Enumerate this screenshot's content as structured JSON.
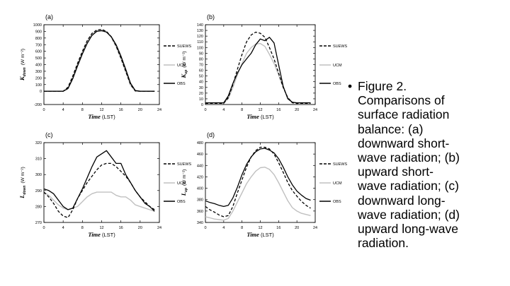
{
  "caption": {
    "bullet": "•",
    "text": "Figure 2.\nComparisons of\nsurface radiation\nbalance: (a)\ndownward short-\nwave radiation; (b)\nupward short-\nwave radiation; (c)\ndownward long-\nwave radiation; (d)\nupward long-wave\nradiation."
  },
  "colors": {
    "SUEWS": "#000000",
    "UCM": "#c0c0c0",
    "OBS": "#000000"
  },
  "chart_data": [
    {
      "panel": "(a)",
      "type": "line",
      "ylabel_main": "K",
      "ylabel_sub": "down",
      "ylabel_unit": "(W m⁻²)",
      "xlabel_main": "Time",
      "xlabel_unit": "(LST)",
      "xlim": [
        0,
        24
      ],
      "ylim": [
        -200,
        1000
      ],
      "xticks": [
        0,
        4,
        8,
        12,
        16,
        20,
        24
      ],
      "yticks": [
        -200,
        0,
        100,
        200,
        300,
        400,
        500,
        600,
        700,
        800,
        900,
        1000
      ],
      "series": [
        {
          "name": "SUEWS",
          "style": "dashed",
          "x": [
            0,
            1,
            2,
            3,
            4,
            5,
            6,
            7,
            8,
            9,
            10,
            11,
            12,
            13,
            14,
            15,
            16,
            17,
            18,
            19,
            20,
            21,
            22,
            23
          ],
          "y": [
            0,
            0,
            0,
            0,
            0,
            60,
            230,
            420,
            600,
            760,
            870,
            920,
            930,
            900,
            820,
            680,
            500,
            300,
            100,
            5,
            0,
            0,
            0,
            0
          ]
        },
        {
          "name": "UCM",
          "style": "solid",
          "x": [
            0,
            1,
            2,
            3,
            4,
            5,
            6,
            7,
            8,
            9,
            10,
            11,
            12,
            13,
            14,
            15,
            16,
            17,
            18,
            19,
            20,
            21,
            22,
            23
          ],
          "y": [
            0,
            0,
            0,
            0,
            0,
            50,
            220,
            410,
            590,
            750,
            860,
            910,
            920,
            890,
            810,
            670,
            490,
            290,
            90,
            0,
            0,
            0,
            0,
            0
          ]
        },
        {
          "name": "OBS",
          "style": "solid",
          "x": [
            0,
            1,
            2,
            3,
            4,
            5,
            6,
            7,
            8,
            9,
            10,
            11,
            12,
            13,
            14,
            15,
            16,
            17,
            18,
            19,
            20,
            21,
            22,
            23
          ],
          "y": [
            0,
            0,
            0,
            0,
            0,
            40,
            190,
            380,
            560,
            720,
            840,
            900,
            910,
            890,
            820,
            700,
            530,
            330,
            120,
            10,
            0,
            0,
            0,
            0
          ]
        }
      ]
    },
    {
      "panel": "(b)",
      "type": "line",
      "ylabel_main": "K",
      "ylabel_sub": "up",
      "ylabel_unit": "(W m⁻²)",
      "xlabel_main": "Time",
      "xlabel_unit": "(LST)",
      "xlim": [
        0,
        24
      ],
      "ylim": [
        0,
        140
      ],
      "xticks": [
        0,
        4,
        8,
        12,
        16,
        20,
        24
      ],
      "yticks": [
        0,
        10,
        20,
        30,
        40,
        50,
        60,
        70,
        80,
        90,
        100,
        110,
        120,
        130,
        140
      ],
      "series": [
        {
          "name": "SUEWS",
          "style": "dashed",
          "x": [
            0,
            1,
            2,
            3,
            4,
            5,
            6,
            7,
            8,
            9,
            10,
            11,
            12,
            13,
            14,
            15,
            16,
            17,
            18,
            19,
            20,
            21,
            22,
            23
          ],
          "y": [
            2,
            2,
            2,
            2,
            2,
            12,
            35,
            62,
            88,
            110,
            122,
            127,
            125,
            118,
            100,
            80,
            55,
            30,
            12,
            3,
            2,
            2,
            2,
            2
          ]
        },
        {
          "name": "UCM",
          "style": "solid",
          "x": [
            0,
            1,
            2,
            3,
            4,
            5,
            6,
            7,
            8,
            9,
            10,
            11,
            12,
            13,
            14,
            15,
            16,
            17,
            18,
            19,
            20,
            21,
            22,
            23
          ],
          "y": [
            3,
            3,
            3,
            3,
            3,
            10,
            30,
            52,
            72,
            90,
            100,
            106,
            107,
            102,
            88,
            72,
            52,
            30,
            12,
            4,
            3,
            3,
            3,
            3
          ]
        },
        {
          "name": "OBS",
          "style": "solid",
          "x": [
            0,
            1,
            2,
            3,
            4,
            5,
            6,
            7,
            8,
            9,
            10,
            11,
            12,
            13,
            14,
            15,
            16,
            17,
            18,
            19,
            20,
            21,
            22,
            23
          ],
          "y": [
            3,
            3,
            3,
            3,
            3,
            15,
            37,
            55,
            70,
            80,
            90,
            105,
            115,
            112,
            118,
            108,
            70,
            32,
            10,
            4,
            3,
            3,
            3,
            3
          ]
        }
      ]
    },
    {
      "panel": "(c)",
      "type": "line",
      "ylabel_main": "L",
      "ylabel_sub": "down",
      "ylabel_unit": "(W m⁻²)",
      "xlabel_main": "Time",
      "xlabel_unit": "(LST)",
      "xlim": [
        0,
        24
      ],
      "ylim": [
        270,
        320
      ],
      "xticks": [
        0,
        4,
        8,
        12,
        16,
        20,
        24
      ],
      "yticks": [
        270,
        280,
        290,
        300,
        310,
        320
      ],
      "series": [
        {
          "name": "SUEWS",
          "style": "dashed",
          "x": [
            0,
            1,
            2,
            3,
            4,
            5,
            6,
            7,
            8,
            9,
            10,
            11,
            12,
            13,
            14,
            15,
            16,
            17,
            18,
            19,
            20,
            21,
            22,
            23
          ],
          "y": [
            289,
            286,
            282,
            277,
            274,
            273,
            278,
            285,
            290,
            295,
            299,
            303,
            306,
            307,
            307,
            305,
            302,
            299,
            295,
            290,
            286,
            283,
            280,
            278
          ]
        },
        {
          "name": "UCM",
          "style": "solid",
          "x": [
            0,
            1,
            2,
            3,
            4,
            5,
            6,
            7,
            8,
            9,
            10,
            11,
            12,
            13,
            14,
            15,
            16,
            17,
            18,
            19,
            20,
            21,
            22,
            23
          ],
          "y": [
            289,
            287,
            284,
            281,
            279,
            278,
            279,
            280,
            283,
            286,
            288,
            289,
            289,
            289,
            289,
            287,
            286,
            286,
            284,
            281,
            280,
            279,
            278,
            277
          ]
        },
        {
          "name": "OBS",
          "style": "solid",
          "x": [
            0,
            1,
            2,
            3,
            4,
            5,
            6,
            7,
            8,
            9,
            10,
            11,
            12,
            13,
            14,
            15,
            16,
            17,
            18,
            19,
            20,
            21,
            22,
            23
          ],
          "y": [
            291,
            290,
            288,
            284,
            280,
            278,
            279,
            285,
            291,
            298,
            305,
            311,
            313,
            315,
            311,
            307,
            307,
            300,
            295,
            290,
            286,
            282,
            280,
            277
          ]
        }
      ]
    },
    {
      "panel": "(d)",
      "type": "line",
      "ylabel_main": "L",
      "ylabel_sub": "up",
      "ylabel_unit": "(W m⁻²)",
      "xlabel_main": "Time",
      "xlabel_unit": "(LST)",
      "xlim": [
        0,
        24
      ],
      "ylim": [
        340,
        480
      ],
      "xticks": [
        0,
        4,
        8,
        12,
        16,
        20,
        24
      ],
      "yticks": [
        340,
        360,
        380,
        400,
        420,
        440,
        460,
        480
      ],
      "series": [
        {
          "name": "SUEWS",
          "style": "dashed",
          "x": [
            0,
            1,
            2,
            3,
            4,
            5,
            6,
            7,
            8,
            9,
            10,
            11,
            12,
            13,
            14,
            15,
            16,
            17,
            18,
            19,
            20,
            21,
            22,
            23
          ],
          "y": [
            368,
            362,
            358,
            353,
            350,
            352,
            368,
            392,
            415,
            437,
            455,
            466,
            472,
            472,
            469,
            460,
            445,
            428,
            410,
            396,
            386,
            377,
            370,
            365
          ]
        },
        {
          "name": "UCM",
          "style": "solid",
          "x": [
            0,
            1,
            2,
            3,
            4,
            5,
            6,
            7,
            8,
            9,
            10,
            11,
            12,
            13,
            14,
            15,
            16,
            17,
            18,
            19,
            20,
            21,
            22,
            23
          ],
          "y": [
            350,
            348,
            346,
            345,
            344,
            347,
            360,
            376,
            392,
            408,
            420,
            430,
            436,
            437,
            433,
            424,
            410,
            394,
            378,
            366,
            360,
            356,
            354,
            352
          ]
        },
        {
          "name": "OBS",
          "style": "solid",
          "x": [
            0,
            1,
            2,
            3,
            4,
            5,
            6,
            7,
            8,
            9,
            10,
            11,
            12,
            13,
            14,
            15,
            16,
            17,
            18,
            19,
            20,
            21,
            22,
            23
          ],
          "y": [
            378,
            375,
            373,
            370,
            368,
            370,
            383,
            402,
            424,
            442,
            455,
            464,
            469,
            470,
            467,
            462,
            452,
            437,
            420,
            406,
            395,
            388,
            382,
            379
          ]
        }
      ]
    }
  ]
}
